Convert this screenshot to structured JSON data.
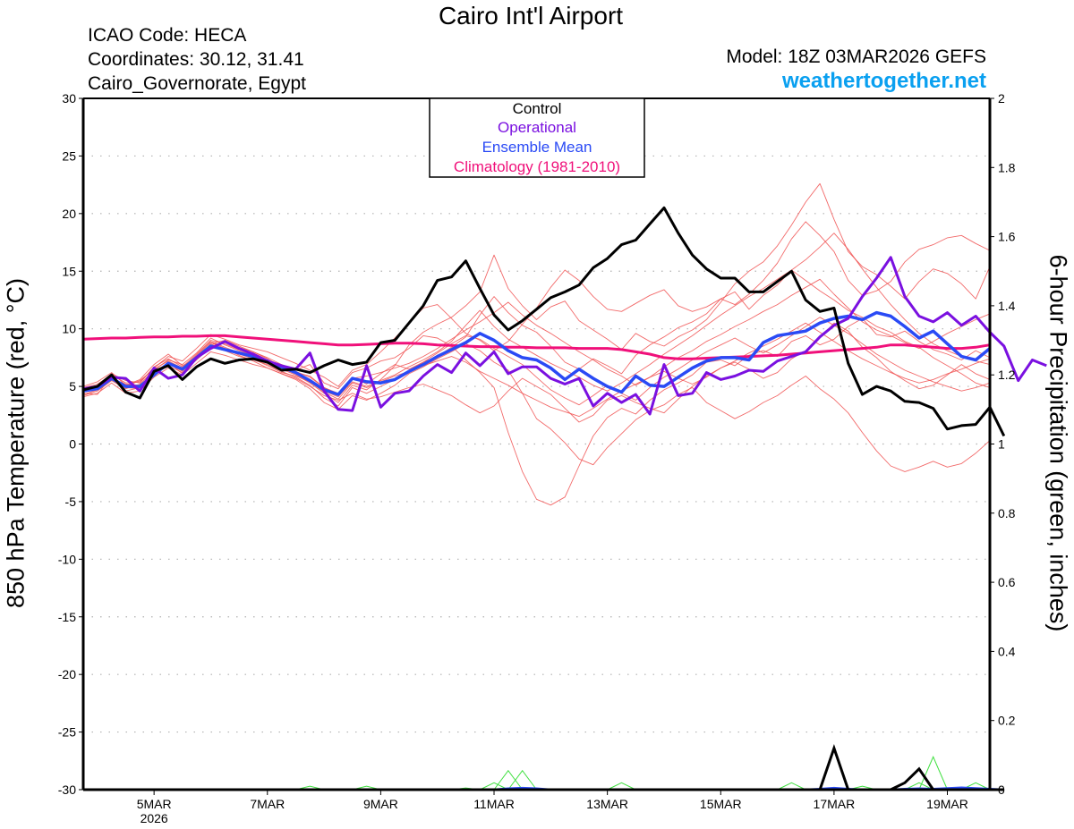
{
  "header": {
    "title": "Cairo Int'l Airport",
    "icao": "ICAO Code: HECA",
    "coordinates": "Coordinates: 30.12, 31.41",
    "region": "Cairo_Governorate, Egypt",
    "model": "Model: 18Z 03MAR2026 GEFS",
    "site": "weathertogether.net"
  },
  "chart_data": {
    "type": "line",
    "title": "Cairo Int'l Airport",
    "ylabel": "850 hPa Temperature (red, °C)",
    "ylabel_right": "6-hour Precipitation (green, inches)",
    "xlabel": "",
    "ylim": [
      -30,
      30
    ],
    "ylim_right": [
      0,
      2
    ],
    "xlim_days": [
      3.75,
      19.75
    ],
    "grid": "horizontal dotted",
    "legend_position": "top-center",
    "legend": [
      {
        "label": "Control",
        "color": "#000000"
      },
      {
        "label": "Operational",
        "color": "#7a10e0"
      },
      {
        "label": "Ensemble Mean",
        "color": "#2a4af5"
      },
      {
        "label": "Climatology (1981-2010)",
        "color": "#f0107a"
      }
    ],
    "yticks_left": [
      "30",
      "25",
      "20",
      "15",
      "10",
      "5",
      "0",
      "-5",
      "-10",
      "-15",
      "-20",
      "-25",
      "-30"
    ],
    "yticks_left_values": [
      30,
      25,
      20,
      15,
      10,
      5,
      0,
      -5,
      -10,
      -15,
      -20,
      -25,
      -30
    ],
    "yticks_right": [
      "2",
      "1.8",
      "1.6",
      "1.4",
      "1.2",
      "1",
      "0.8",
      "0.6",
      "0.4",
      "0.2",
      "0"
    ],
    "yticks_right_values": [
      2,
      1.8,
      1.6,
      1.4,
      1.2,
      1,
      0.8,
      0.6,
      0.4,
      0.2,
      0
    ],
    "xticks": [
      {
        "day": 5,
        "label": "5MAR",
        "sublabel": "2026"
      },
      {
        "day": 7,
        "label": "7MAR",
        "sublabel": ""
      },
      {
        "day": 9,
        "label": "9MAR",
        "sublabel": ""
      },
      {
        "day": 11,
        "label": "11MAR",
        "sublabel": ""
      },
      {
        "day": 13,
        "label": "13MAR",
        "sublabel": ""
      },
      {
        "day": 15,
        "label": "15MAR",
        "sublabel": ""
      },
      {
        "day": 17,
        "label": "17MAR",
        "sublabel": ""
      },
      {
        "day": 19,
        "label": "19MAR",
        "sublabel": ""
      }
    ],
    "x_start_day": 3.75,
    "x_step_days": 0.25,
    "series": [
      {
        "name": "Climatology (1981-2010)",
        "color": "#f0107a",
        "width": 3,
        "values": [
          9.1,
          9.15,
          9.2,
          9.2,
          9.25,
          9.3,
          9.3,
          9.35,
          9.35,
          9.4,
          9.4,
          9.3,
          9.2,
          9.1,
          9.0,
          8.9,
          8.8,
          8.7,
          8.6,
          8.6,
          8.65,
          8.7,
          8.75,
          8.75,
          8.7,
          8.6,
          8.55,
          8.5,
          8.45,
          8.45,
          8.4,
          8.4,
          8.35,
          8.35,
          8.35,
          8.3,
          8.3,
          8.3,
          8.2,
          8.0,
          7.8,
          7.5,
          7.4,
          7.4,
          7.45,
          7.5,
          7.55,
          7.6,
          7.65,
          7.7,
          7.8,
          7.9,
          8.0,
          8.1,
          8.2,
          8.3,
          8.4,
          8.6,
          8.6,
          8.5,
          8.4,
          8.3,
          8.3,
          8.4,
          8.6
        ]
      },
      {
        "name": "Ensemble Mean",
        "color": "#2a4af5",
        "width": 3.5,
        "values": [
          4.6,
          4.8,
          5.7,
          5.0,
          5.0,
          6.0,
          7.0,
          6.5,
          7.5,
          8.5,
          8.2,
          7.9,
          7.6,
          7.2,
          6.7,
          6.2,
          5.5,
          4.7,
          4.3,
          5.7,
          5.4,
          5.3,
          5.6,
          6.3,
          6.9,
          7.6,
          8.2,
          8.8,
          9.6,
          9.0,
          8.1,
          7.5,
          7.3,
          6.6,
          5.6,
          6.5,
          5.7,
          5.0,
          4.5,
          5.9,
          5.1,
          5.0,
          5.8,
          6.6,
          7.2,
          7.5,
          7.5,
          7.3,
          8.8,
          9.4,
          9.6,
          9.8,
          10.5,
          10.9,
          11.1,
          10.8,
          11.4,
          11.1,
          10.2,
          9.2,
          9.8,
          8.7,
          7.6,
          7.3,
          8.3
        ]
      },
      {
        "name": "Operational",
        "color": "#7a10e0",
        "width": 3,
        "values": [
          4.8,
          5.0,
          5.8,
          5.7,
          4.6,
          6.6,
          5.7,
          6.0,
          7.5,
          8.3,
          8.9,
          8.3,
          7.8,
          7.2,
          6.8,
          6.5,
          7.9,
          4.6,
          3.0,
          2.9,
          6.8,
          3.2,
          4.4,
          4.6,
          5.9,
          6.9,
          6.2,
          7.9,
          6.8,
          8.0,
          6.1,
          6.7,
          6.7,
          5.7,
          5.2,
          5.7,
          3.3,
          4.4,
          3.6,
          4.3,
          2.6,
          6.9,
          4.2,
          4.4,
          6.2,
          5.6,
          5.9,
          6.4,
          6.3,
          7.2,
          7.6,
          8.0,
          9.3,
          10.3,
          10.9,
          12.8,
          14.4,
          16.2,
          12.8,
          11.1,
          10.6,
          11.4,
          10.3,
          11.1,
          9.7,
          8.5,
          5.5,
          7.3,
          6.8
        ]
      },
      {
        "name": "Control",
        "color": "#000000",
        "width": 3,
        "values": [
          4.7,
          5.0,
          6.0,
          4.5,
          4.0,
          6.3,
          6.8,
          5.6,
          6.7,
          7.4,
          7.0,
          7.3,
          7.4,
          7.1,
          6.4,
          6.5,
          6.2,
          6.8,
          7.3,
          6.9,
          7.1,
          8.8,
          9.0,
          10.5,
          12.0,
          14.2,
          14.5,
          15.9,
          13.5,
          11.2,
          9.9,
          10.7,
          11.7,
          12.7,
          13.2,
          13.8,
          15.3,
          16.1,
          17.3,
          17.7,
          19.1,
          20.5,
          18.3,
          16.4,
          15.2,
          14.4,
          14.4,
          13.2,
          13.2,
          14.1,
          15.0,
          12.5,
          11.5,
          11.8,
          7.0,
          4.3,
          5.0,
          4.6,
          3.7,
          3.6,
          3.1,
          1.3,
          1.6,
          1.7,
          3.2,
          0.7
        ]
      }
    ],
    "ensemble_members": {
      "color": "#f05050",
      "description": "individual GEFS member traces (approximate)",
      "values": [
        [
          4.2,
          4.6,
          5.5,
          4.8,
          5.2,
          6.4,
          7.3,
          6.9,
          7.9,
          9.2,
          8.6,
          8.1,
          7.7,
          7.0,
          6.5,
          6.0,
          5.3,
          4.4,
          3.6,
          5.1,
          4.7,
          5.6,
          6.8,
          8.6,
          9.7,
          10.4,
          11.0,
          12.0,
          13.2,
          16.4,
          13.5,
          12.0,
          10.8,
          11.9,
          12.4,
          10.7,
          9.9,
          9.1,
          8.2,
          9.6,
          8.9,
          8.5,
          9.3,
          9.9,
          10.8,
          12.3,
          13.9,
          15.0,
          15.8,
          17.2,
          19.0,
          21.0,
          22.6,
          19.5,
          16.7,
          15.4,
          14.7,
          13.7,
          12.6,
          14.1,
          15.2,
          14.8,
          13.9,
          12.6,
          15.4
        ],
        [
          5.0,
          5.4,
          6.2,
          5.1,
          5.6,
          6.9,
          7.8,
          6.8,
          7.4,
          8.7,
          9.0,
          8.5,
          8.0,
          7.5,
          6.9,
          6.4,
          6.9,
          5.3,
          4.8,
          6.2,
          6.6,
          7.2,
          7.5,
          8.3,
          9.4,
          9.2,
          8.5,
          7.3,
          6.2,
          4.9,
          1.0,
          -2.4,
          -4.8,
          -5.3,
          -4.6,
          -1.9,
          0.7,
          2.3,
          3.1,
          2.6,
          3.8,
          4.7,
          5.3,
          6.0,
          7.1,
          7.3,
          6.8,
          7.7,
          8.1,
          7.6,
          8.9,
          9.4,
          8.6,
          9.1,
          10.2,
          10.9,
          9.5,
          9.3,
          9.8,
          8.9,
          8.2,
          7.8,
          7.3,
          8.1,
          7.5
        ],
        [
          4.4,
          4.3,
          5.9,
          4.6,
          4.9,
          6.1,
          7.1,
          6.1,
          7.6,
          8.8,
          8.3,
          7.7,
          7.2,
          6.6,
          6.1,
          5.6,
          4.8,
          3.6,
          3.0,
          4.2,
          3.8,
          4.4,
          5.1,
          6.1,
          6.7,
          7.4,
          8.0,
          8.7,
          8.1,
          7.1,
          6.4,
          4.4,
          2.2,
          1.3,
          0.1,
          -1.3,
          -1.8,
          -0.3,
          0.9,
          2.1,
          2.9,
          3.4,
          4.3,
          4.9,
          3.6,
          2.9,
          2.2,
          2.8,
          3.6,
          4.2,
          5.1,
          5.9,
          4.8,
          3.9,
          2.7,
          1.0,
          -0.6,
          -1.9,
          -2.4,
          -2.0,
          -1.5,
          -2.0,
          -1.7,
          -0.8,
          0.3
        ],
        [
          4.9,
          5.2,
          6.0,
          5.3,
          5.4,
          6.6,
          7.6,
          7.2,
          8.3,
          9.5,
          9.1,
          8.6,
          8.3,
          8.0,
          7.5,
          7.0,
          6.4,
          5.8,
          5.0,
          6.4,
          6.9,
          8.0,
          9.2,
          10.5,
          11.8,
          12.1,
          10.9,
          9.6,
          9.0,
          8.1,
          8.9,
          10.4,
          11.8,
          13.6,
          15.1,
          14.2,
          12.8,
          11.7,
          11.5,
          12.2,
          12.9,
          13.4,
          12.0,
          11.5,
          11.9,
          12.6,
          12.1,
          13.0,
          14.2,
          15.7,
          17.8,
          19.3,
          18.1,
          16.7,
          14.2,
          12.9,
          13.3,
          14.1,
          15.8,
          16.9,
          17.3,
          17.9,
          18.1,
          17.4,
          16.8
        ],
        [
          4.6,
          4.9,
          5.7,
          5.2,
          5.1,
          6.2,
          6.9,
          6.4,
          7.6,
          8.6,
          8.8,
          8.4,
          8.0,
          7.4,
          6.7,
          6.2,
          5.9,
          4.9,
          4.4,
          5.8,
          5.2,
          6.1,
          6.9,
          6.5,
          7.1,
          7.6,
          8.4,
          9.3,
          11.2,
          12.8,
          11.4,
          10.3,
          9.7,
          8.5,
          7.1,
          6.5,
          7.4,
          6.8,
          6.1,
          7.7,
          8.6,
          9.3,
          10.1,
          10.6,
          11.3,
          12.6,
          13.2,
          11.7,
          12.9,
          13.8,
          15.1,
          14.2,
          13.3,
          12.5,
          11.6,
          11.0,
          10.2,
          9.7,
          8.9,
          8.4,
          7.5,
          6.8,
          6.1,
          5.3,
          4.9
        ],
        [
          4.1,
          4.4,
          5.3,
          4.4,
          4.6,
          5.8,
          6.6,
          6.0,
          7.0,
          8.0,
          7.7,
          7.3,
          6.9,
          6.6,
          6.1,
          5.7,
          5.0,
          4.2,
          3.8,
          4.4,
          3.9,
          4.1,
          4.5,
          4.9,
          5.2,
          4.7,
          4.2,
          3.4,
          2.7,
          3.3,
          4.6,
          5.7,
          5.0,
          4.3,
          3.1,
          1.9,
          2.5,
          3.8,
          4.2,
          3.6,
          3.1,
          2.7,
          3.9,
          5.0,
          5.9,
          6.6,
          7.1,
          6.5,
          5.7,
          6.2,
          7.4,
          8.1,
          9.2,
          10.5,
          9.8,
          8.4,
          7.5,
          6.3,
          5.5,
          4.8,
          5.1,
          6.0,
          6.9,
          6.1,
          5.6
        ],
        [
          4.8,
          5.1,
          6.1,
          5.5,
          5.3,
          6.7,
          7.4,
          6.7,
          7.8,
          9.0,
          8.7,
          8.2,
          7.9,
          7.3,
          6.8,
          6.3,
          5.8,
          4.9,
          4.3,
          5.7,
          5.9,
          6.2,
          6.6,
          7.0,
          7.6,
          8.3,
          9.1,
          9.9,
          10.6,
          11.4,
          12.3,
          11.2,
          10.3,
          9.6,
          8.8,
          8.0,
          7.3,
          6.5,
          5.9,
          5.1,
          5.8,
          6.7,
          7.5,
          8.1,
          8.9,
          9.5,
          10.2,
          10.8,
          11.5,
          12.1,
          12.9,
          13.6,
          14.3,
          13.0,
          11.8,
          10.6,
          9.9,
          9.4,
          8.8,
          8.3,
          8.9,
          9.6,
          10.2,
          10.8,
          11.3
        ],
        [
          4.3,
          4.7,
          5.6,
          4.9,
          4.8,
          6.0,
          6.8,
          6.2,
          7.3,
          8.4,
          8.1,
          7.6,
          7.3,
          6.9,
          6.3,
          5.8,
          5.1,
          4.0,
          3.3,
          4.9,
          4.4,
          5.0,
          5.6,
          6.4,
          7.1,
          7.9,
          8.7,
          9.4,
          9.1,
          8.3,
          7.6,
          6.9,
          5.8,
          4.7,
          4.0,
          3.4,
          4.2,
          5.1,
          4.4,
          3.8,
          4.9,
          5.8,
          6.5,
          7.3,
          8.0,
          8.6,
          9.2,
          8.5,
          7.9,
          8.6,
          9.4,
          10.2,
          11.0,
          10.3,
          9.6,
          8.7,
          7.8,
          7.1,
          6.4,
          5.9,
          5.4,
          5.0,
          4.6,
          4.9,
          5.3
        ],
        [
          4.7,
          5.0,
          5.8,
          5.0,
          5.5,
          6.5,
          7.2,
          6.6,
          7.7,
          8.9,
          8.4,
          7.9,
          7.5,
          7.1,
          6.6,
          6.1,
          5.6,
          4.6,
          4.1,
          5.4,
          5.0,
          5.5,
          6.0,
          6.7,
          7.3,
          8.0,
          8.9,
          10.3,
          11.6,
          10.2,
          9.1,
          8.4,
          7.7,
          7.0,
          6.4,
          5.8,
          5.1,
          4.6,
          5.3,
          6.1,
          6.9,
          7.8,
          8.6,
          9.4,
          10.3,
          11.2,
          12.0,
          12.8,
          13.5,
          14.3,
          15.1,
          16.0,
          17.1,
          18.3,
          16.9,
          15.2,
          13.6,
          12.1,
          10.8,
          9.6,
          8.7,
          8.1,
          7.6,
          7.2,
          6.9
        ],
        [
          4.5,
          4.8,
          5.6,
          5.1,
          5.0,
          6.3,
          7.0,
          6.3,
          7.5,
          8.5,
          8.2,
          7.8,
          7.4,
          6.8,
          6.2,
          5.9,
          5.4,
          4.5,
          3.9,
          5.3,
          4.9,
          5.4,
          5.9,
          6.3,
          6.8,
          7.2,
          7.6,
          7.1,
          6.3,
          5.7,
          5.1,
          4.4,
          3.8,
          3.2,
          2.8,
          2.4,
          3.1,
          3.9,
          4.6,
          5.2,
          5.8,
          6.3,
          5.7,
          5.2,
          5.8,
          6.6,
          7.2,
          7.9,
          8.5,
          9.1,
          9.8,
          10.5,
          9.7,
          8.9,
          8.1,
          7.4,
          6.8,
          6.2,
          5.7,
          5.3,
          5.6,
          6.1,
          6.5,
          7.0,
          7.4
        ]
      ]
    },
    "precipitation": {
      "color_members": "#40e040",
      "color_mean": "#2a4af5",
      "color_control": "#000000",
      "control_inches": [
        0,
        0,
        0,
        0,
        0,
        0,
        0,
        0,
        0,
        0,
        0,
        0,
        0,
        0,
        0,
        0,
        0,
        0,
        0,
        0,
        0,
        0,
        0,
        0,
        0,
        0,
        0,
        0,
        0,
        0,
        0,
        0,
        0,
        0,
        0,
        0,
        0,
        0,
        0,
        0,
        0,
        0,
        0,
        0,
        0,
        0,
        0,
        0,
        0,
        0,
        0,
        0,
        0,
        0.12,
        0,
        0,
        0,
        0,
        0.02,
        0.06,
        0,
        0,
        0,
        0,
        0,
        0
      ],
      "mean_inches": [
        0,
        0,
        0,
        0,
        0,
        0,
        0,
        0,
        0,
        0,
        0,
        0,
        0,
        0,
        0,
        0,
        0,
        0,
        0,
        0,
        0,
        0,
        0,
        0,
        0,
        0,
        0,
        0,
        0,
        0,
        0.003,
        0.005,
        0.003,
        0,
        0,
        0,
        0,
        0,
        0,
        0,
        0,
        0,
        0,
        0,
        0,
        0,
        0,
        0,
        0,
        0,
        0,
        0,
        0.002,
        0.005,
        0.002,
        0,
        0,
        0,
        0.002,
        0.003,
        0.002,
        0.004,
        0.006,
        0.004,
        0.002,
        0
      ],
      "member_peaks_inches": [
        {
          "day": 7.75,
          "value": 0.01
        },
        {
          "day": 8.75,
          "value": 0.01
        },
        {
          "day": 10.5,
          "value": 0.005
        },
        {
          "day": 11.0,
          "value": 0.02
        },
        {
          "day": 11.25,
          "value": 0.055
        },
        {
          "day": 11.5,
          "value": 0.055
        },
        {
          "day": 13.25,
          "value": 0.02
        },
        {
          "day": 16.25,
          "value": 0.02
        },
        {
          "day": 17.5,
          "value": 0.01
        },
        {
          "day": 18.5,
          "value": 0.02
        },
        {
          "day": 18.75,
          "value": 0.095
        },
        {
          "day": 19.5,
          "value": 0.02
        }
      ]
    }
  }
}
